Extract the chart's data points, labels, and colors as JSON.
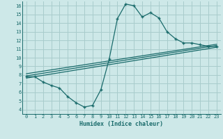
{
  "background_color": "#cde8e8",
  "grid_color": "#a8cccc",
  "line_color": "#1a6b6b",
  "xlabel": "Humidex (Indice chaleur)",
  "xlim": [
    -0.5,
    23.5
  ],
  "ylim": [
    3.5,
    16.5
  ],
  "yticks": [
    4,
    5,
    6,
    7,
    8,
    9,
    10,
    11,
    12,
    13,
    14,
    15,
    16
  ],
  "xticks": [
    0,
    1,
    2,
    3,
    4,
    5,
    6,
    7,
    8,
    9,
    10,
    11,
    12,
    13,
    14,
    15,
    16,
    17,
    18,
    19,
    20,
    21,
    22,
    23
  ],
  "main_x": [
    0,
    1,
    2,
    3,
    4,
    5,
    6,
    7,
    8,
    9,
    10,
    11,
    12,
    13,
    14,
    15,
    16,
    17,
    18,
    19,
    20,
    21,
    22,
    23
  ],
  "main_y": [
    7.8,
    7.8,
    7.2,
    6.8,
    6.5,
    5.5,
    4.8,
    4.3,
    4.5,
    6.3,
    9.8,
    14.5,
    16.2,
    16.0,
    14.7,
    15.2,
    14.6,
    13.0,
    12.2,
    11.7,
    11.7,
    11.5,
    11.3,
    11.3
  ],
  "trend1_x": [
    0,
    23
  ],
  "trend1_y": [
    7.9,
    11.4
  ],
  "trend2_x": [
    0,
    23
  ],
  "trend2_y": [
    8.15,
    11.55
  ],
  "trend3_x": [
    0,
    23
  ],
  "trend3_y": [
    7.65,
    11.2
  ]
}
